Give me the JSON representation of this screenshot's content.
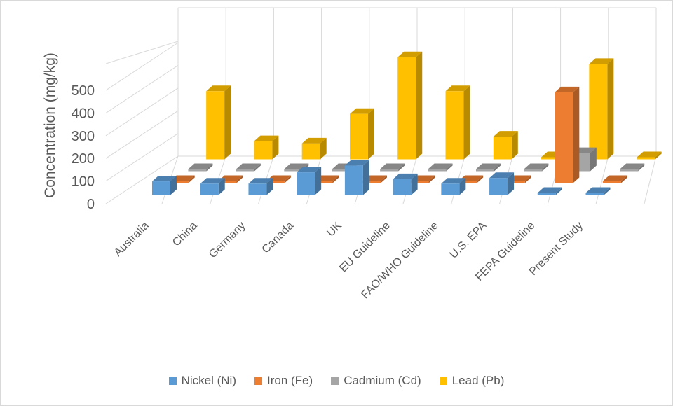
{
  "chart_data": {
    "type": "bar",
    "subtype": "3d-clustered-column",
    "title": "",
    "xlabel": "",
    "ylabel": "Concentration (mg/kg)",
    "ylim": [
      0,
      500
    ],
    "yticks": [
      "0",
      "100",
      "200",
      "300",
      "400",
      "500"
    ],
    "grid": true,
    "legend_position": "bottom",
    "categories": [
      "Australia",
      "China",
      "Germany",
      "Canada",
      "UK",
      "EU Guideline",
      "FAO/WHO Guideline",
      "U.S. EPA",
      "FEPA Guideline",
      "Present Study"
    ],
    "series": [
      {
        "name": "Nickel (Ni)",
        "color": "#5b9bd5",
        "values": [
          60,
          50,
          50,
          100,
          130,
          70,
          50,
          75,
          3,
          2
        ]
      },
      {
        "name": "Iron (Fe)",
        "color": "#ed7d31",
        "values": [
          0,
          0,
          0,
          0,
          0,
          0,
          0,
          0,
          400,
          0
        ]
      },
      {
        "name": "Cadmium (Cd)",
        "color": "#a5a5a5",
        "values": [
          3,
          3,
          3,
          3,
          3,
          3,
          3,
          3,
          80,
          3
        ]
      },
      {
        "name": "Lead (Pb)",
        "color": "#ffc000",
        "values": [
          300,
          80,
          70,
          200,
          450,
          300,
          100,
          3,
          420,
          2
        ]
      }
    ]
  }
}
